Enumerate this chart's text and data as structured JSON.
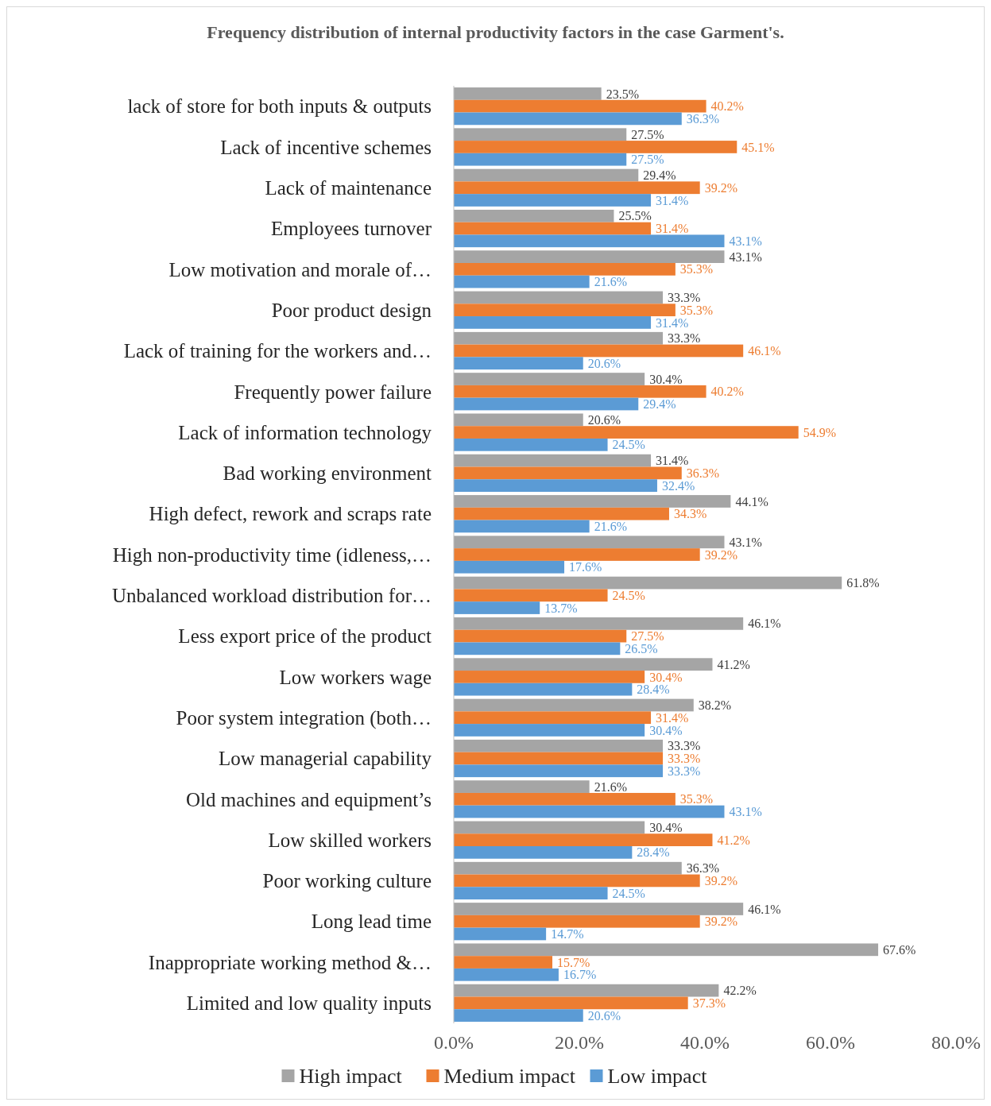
{
  "chart_data": {
    "type": "bar",
    "orientation": "horizontal",
    "title": "Frequency distribution of internal productivity factors in the case Garment's.",
    "categories": [
      "lack of store for both inputs & outputs",
      "Lack of incentive schemes",
      "Lack of maintenance",
      "Employees turnover",
      "Low motivation and morale of…",
      "Poor product design",
      "Lack of training for the workers and…",
      "Frequently power failure",
      "Lack of information technology",
      "Bad working environment",
      "High defect, rework and scraps rate",
      "High non-productivity time (idleness,…",
      "Unbalanced workload distribution for…",
      "Less export price of the product",
      "Low workers wage",
      "Poor system integration (both…",
      "Low managerial capability",
      "Old machines and equipment’s",
      "Low skilled workers",
      "Poor working culture",
      "Long lead time",
      "Inappropriate working method &…",
      "Limited and low quality inputs"
    ],
    "series": [
      {
        "name": "High impact",
        "color": "#a5a5a5",
        "values": [
          23.5,
          27.5,
          29.4,
          25.5,
          43.1,
          33.3,
          33.3,
          30.4,
          20.6,
          31.4,
          44.1,
          43.1,
          61.8,
          46.1,
          41.2,
          38.2,
          33.3,
          21.6,
          30.4,
          36.3,
          46.1,
          67.6,
          42.2
        ],
        "value_labels": [
          "23.5%",
          "27.5%",
          "29.4%",
          "25.5%",
          "43.1%",
          "33.3%",
          "33.3%",
          "30.4%",
          "20.6%",
          "31.4%",
          "44.1%",
          "43.1%",
          "61.8%",
          "46.1%",
          "41.2%",
          "38.2%",
          "33.3%",
          "21.6%",
          "30.4%",
          "36.3%",
          "46.1%",
          "67.6%",
          "42.2%"
        ]
      },
      {
        "name": "Medium impact",
        "color": "#ed7d31",
        "values": [
          40.2,
          45.1,
          39.2,
          31.4,
          35.3,
          35.3,
          46.1,
          40.2,
          54.9,
          36.3,
          34.3,
          39.2,
          24.5,
          27.5,
          30.4,
          31.4,
          33.3,
          35.3,
          41.2,
          39.2,
          39.2,
          15.7,
          37.3
        ],
        "value_labels": [
          "40.2%",
          "45.1%",
          "39.2%",
          "31.4%",
          "35.3%",
          "35.3%",
          "46.1%",
          "40.2%",
          "54.9%",
          "36.3%",
          "34.3%",
          "39.2%",
          "24.5%",
          "27.5%",
          "30.4%",
          "31.4%",
          "33.3%",
          "35.3%",
          "41.2%",
          "39.2%",
          "39.2%",
          "15.7%",
          "37.3%"
        ]
      },
      {
        "name": "Low impact",
        "color": "#5b9bd5",
        "values": [
          36.3,
          27.5,
          31.4,
          43.1,
          21.6,
          31.4,
          20.6,
          29.4,
          24.5,
          32.4,
          21.6,
          17.6,
          13.7,
          26.5,
          28.4,
          30.4,
          33.3,
          43.1,
          28.4,
          24.5,
          14.7,
          16.7,
          20.6
        ],
        "value_labels": [
          "36.3%",
          "27.5%",
          "31.4%",
          "43.1%",
          "21.6%",
          "31.4%",
          "20.6%",
          "29.4%",
          "24.5%",
          "32.4%",
          "21.6%",
          "17.6%",
          "13.7%",
          "26.5%",
          "28.4%",
          "30.4%",
          "33.3%",
          "43.1%",
          "28.4%",
          "24.5%",
          "14.7%",
          "16.7%",
          "20.6%"
        ]
      }
    ],
    "xlim": [
      0,
      80
    ],
    "xticks": [
      {
        "value": 0,
        "label": "0.0%"
      },
      {
        "value": 20,
        "label": "20.0%"
      },
      {
        "value": 40,
        "label": "40.0%"
      },
      {
        "value": 60,
        "label": "60.0%"
      },
      {
        "value": 80,
        "label": "80.0%"
      }
    ],
    "legend": "bottom",
    "grid": false
  }
}
